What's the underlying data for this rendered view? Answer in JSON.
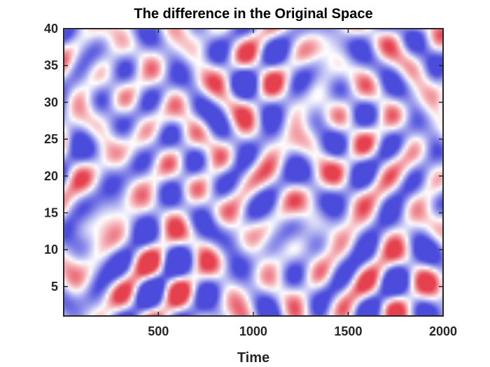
{
  "chart_data": {
    "type": "heatmap",
    "title": "The difference in the Original Space",
    "xlabel": "Time",
    "ylabel": "",
    "xlim": [
      1,
      2000
    ],
    "ylim": [
      1,
      40
    ],
    "x_ticks": [
      500,
      1000,
      1500,
      2000
    ],
    "y_ticks": [
      5,
      10,
      15,
      20,
      25,
      30,
      35,
      40
    ],
    "colormap": {
      "negative": "#2b2bd6",
      "zero": "#ffffff",
      "positive": "#e01e2e"
    },
    "grid": false,
    "legend": "none",
    "pattern": "diagonal stripes of alternating positive/negative differences, predominantly negative (blue)"
  }
}
